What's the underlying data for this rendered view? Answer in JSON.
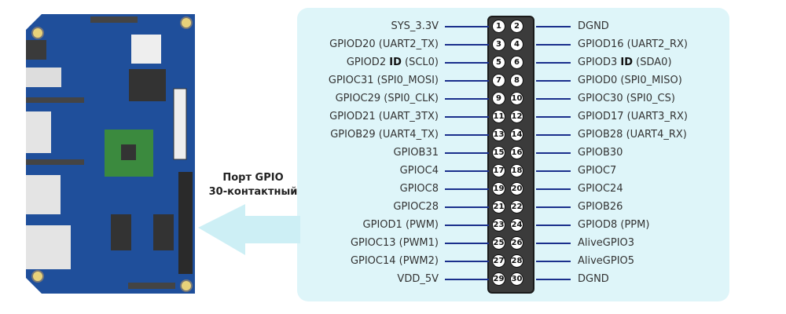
{
  "caption": {
    "line1": "Порт GPIO",
    "line2": "30-контактный"
  },
  "colors": {
    "panel": "#def5f9",
    "board": "#1f4f9b",
    "wire": "#1a2f8c",
    "header": "#3b3b3b"
  },
  "pins": [
    {
      "num": "1",
      "pre": "SYS_3.3V"
    },
    {
      "num": "2",
      "pre": "DGND"
    },
    {
      "num": "3",
      "pre": "GPIOD20 (UART2_TX)"
    },
    {
      "num": "4",
      "pre": "GPIOD16 (UART2_RX)"
    },
    {
      "num": "5",
      "pre": "GPIOD2 ",
      "bold": "ID",
      "post": " (SCL0)"
    },
    {
      "num": "6",
      "pre": "GPIOD3 ",
      "bold": "ID",
      "post": " (SDA0)"
    },
    {
      "num": "7",
      "pre": "GPIOC31 (SPI0_MOSI)"
    },
    {
      "num": "8",
      "pre": "GPIOD0 (SPI0_MISO)"
    },
    {
      "num": "9",
      "pre": "GPIOC29 (SPI0_CLK)"
    },
    {
      "num": "10",
      "pre": "GPIOC30 (SPI0_CS)"
    },
    {
      "num": "11",
      "pre": "GPIOD21 (UART_3TX)"
    },
    {
      "num": "12",
      "pre": "GPIOD17 (UART3_RX)"
    },
    {
      "num": "13",
      "pre": "GPIOB29 (UART4_TX)"
    },
    {
      "num": "14",
      "pre": "GPIOB28 (UART4_RX)"
    },
    {
      "num": "15",
      "pre": "GPIOB31"
    },
    {
      "num": "16",
      "pre": "GPIOB30"
    },
    {
      "num": "17",
      "pre": "GPIOC4"
    },
    {
      "num": "18",
      "pre": "GPIOC7"
    },
    {
      "num": "19",
      "pre": "GPIOC8"
    },
    {
      "num": "20",
      "pre": "GPIOC24"
    },
    {
      "num": "21",
      "pre": "GPIOC28"
    },
    {
      "num": "22",
      "pre": "GPIOB26"
    },
    {
      "num": "23",
      "pre": "GPIOD1 (PWM)"
    },
    {
      "num": "24",
      "pre": "GPIOD8 (PPM)"
    },
    {
      "num": "25",
      "pre": "GPIOC13 (PWM1)"
    },
    {
      "num": "26",
      "pre": "AliveGPIO3"
    },
    {
      "num": "27",
      "pre": "GPIOC14 (PWM2)"
    },
    {
      "num": "28",
      "pre": "AliveGPIO5"
    },
    {
      "num": "29",
      "pre": "VDD_5V"
    },
    {
      "num": "30",
      "pre": "DGND"
    }
  ]
}
